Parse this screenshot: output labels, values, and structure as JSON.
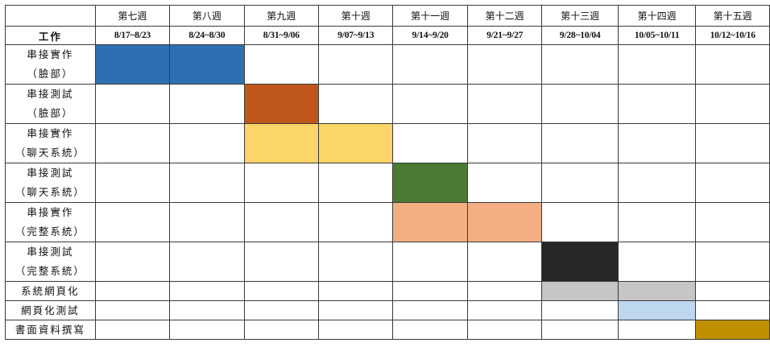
{
  "header": {
    "corner": "",
    "task_column_label": "工作",
    "weeks": [
      {
        "label": "第七週",
        "dates": "8/17~8/23"
      },
      {
        "label": "第八週",
        "dates": "8/24~8/30"
      },
      {
        "label": "第九週",
        "dates": "8/31~9/06"
      },
      {
        "label": "第十週",
        "dates": "9/07~9/13"
      },
      {
        "label": "第十一週",
        "dates": "9/14~9/20"
      },
      {
        "label": "第十二週",
        "dates": "9/21~9/27"
      },
      {
        "label": "第十三週",
        "dates": "9/28~10/04"
      },
      {
        "label": "第十四週",
        "dates": "10/05~10/11"
      },
      {
        "label": "第十五週",
        "dates": "10/12~10/16"
      }
    ]
  },
  "tasks": [
    {
      "line1": "串接實作",
      "line2": "（臉部）",
      "weeks": [
        0,
        1
      ],
      "color": "#2e6fb2"
    },
    {
      "line1": "串接測試",
      "line2": "（臉部）",
      "weeks": [
        2
      ],
      "color": "#c0571a"
    },
    {
      "line1": "串接實作",
      "line2": "（聊天系統）",
      "weeks": [
        2,
        3
      ],
      "color": "#fcd568"
    },
    {
      "line1": "串接測試",
      "line2": "（聊天系統）",
      "weeks": [
        4
      ],
      "color": "#4a7a34"
    },
    {
      "line1": "串接實作",
      "line2": "（完整系統）",
      "weeks": [
        4,
        5
      ],
      "color": "#f3ae84"
    },
    {
      "line1": "串接測試",
      "line2": "（完整系統）",
      "weeks": [
        6
      ],
      "color": "#262626"
    },
    {
      "line1": "系統網頁化",
      "line2": "",
      "weeks": [
        6,
        7
      ],
      "color": "#c6c6c6"
    },
    {
      "line1": "網頁化測試",
      "line2": "",
      "weeks": [
        7
      ],
      "color": "#bdd7ee"
    },
    {
      "line1": "書面資料撰寫",
      "line2": "",
      "weeks": [
        8
      ],
      "color": "#bf8f00"
    }
  ]
}
